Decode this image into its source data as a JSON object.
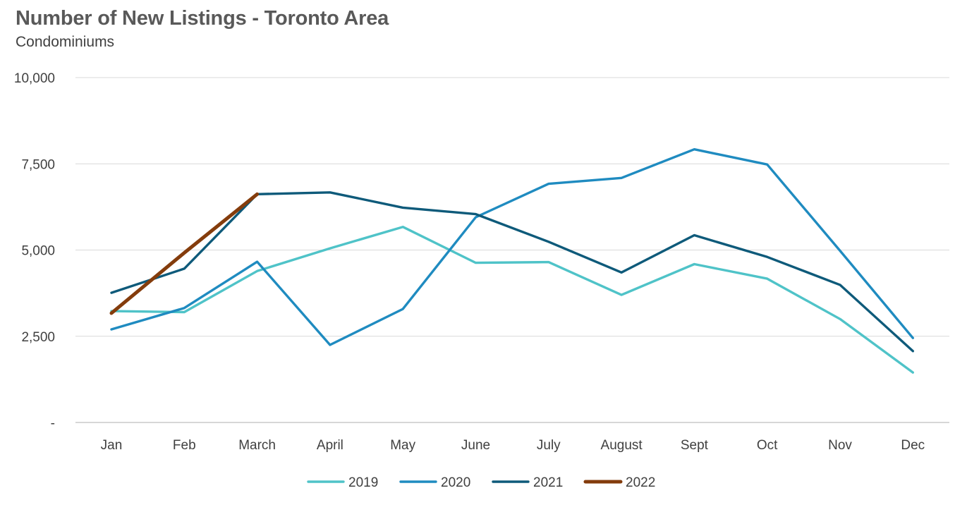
{
  "title": "Number of New Listings - Toronto Area",
  "subtitle": "Condominiums",
  "chart_data": {
    "type": "line",
    "title": "Number of New Listings - Toronto Area",
    "subtitle": "Condominiums",
    "xlabel": "",
    "ylabel": "",
    "categories": [
      "Jan",
      "Feb",
      "March",
      "April",
      "May",
      "June",
      "July",
      "August",
      "Sept",
      "Oct",
      "Nov",
      "Dec"
    ],
    "ylim": [
      0,
      10000
    ],
    "yticks": [
      {
        "value": 0,
        "label": "-"
      },
      {
        "value": 2500,
        "label": "2,500"
      },
      {
        "value": 5000,
        "label": "5,000"
      },
      {
        "value": 7500,
        "label": "7,500"
      },
      {
        "value": 10000,
        "label": "10,000"
      }
    ],
    "grid": true,
    "legend_position": "bottom",
    "series": [
      {
        "name": "2019",
        "color": "#4fc3c8",
        "values": [
          3230,
          3200,
          4390,
          5050,
          5670,
          4630,
          4650,
          3700,
          4590,
          4170,
          3000,
          1450
        ]
      },
      {
        "name": "2020",
        "color": "#1f8bc0",
        "values": [
          2700,
          3320,
          4660,
          2250,
          3290,
          5950,
          6920,
          7090,
          7920,
          7480,
          4980,
          2450
        ]
      },
      {
        "name": "2021",
        "color": "#0e5a7a",
        "values": [
          3760,
          4460,
          6620,
          6670,
          6230,
          6040,
          5240,
          4350,
          5430,
          4800,
          3990,
          2070
        ]
      },
      {
        "name": "2022",
        "color": "#843c0c",
        "values": [
          3170,
          4920,
          6620,
          null,
          null,
          null,
          null,
          null,
          null,
          null,
          null,
          null
        ]
      }
    ]
  }
}
